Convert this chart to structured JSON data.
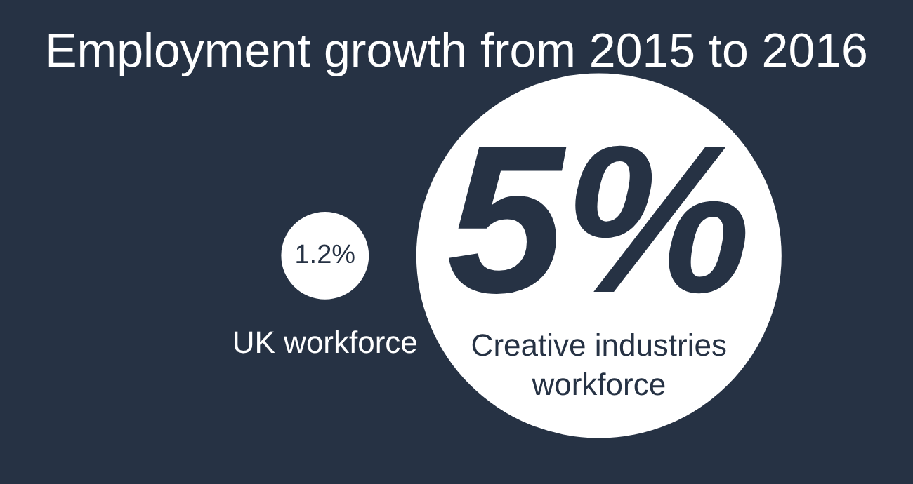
{
  "chart_data": {
    "type": "other",
    "title": "Employment growth from 2015 to 2016",
    "categories": [
      "UK workforce",
      "Creative industries workforce"
    ],
    "values": [
      1.2,
      5
    ],
    "value_labels": [
      "1.2%",
      "5%"
    ],
    "color": "#ffffff"
  }
}
